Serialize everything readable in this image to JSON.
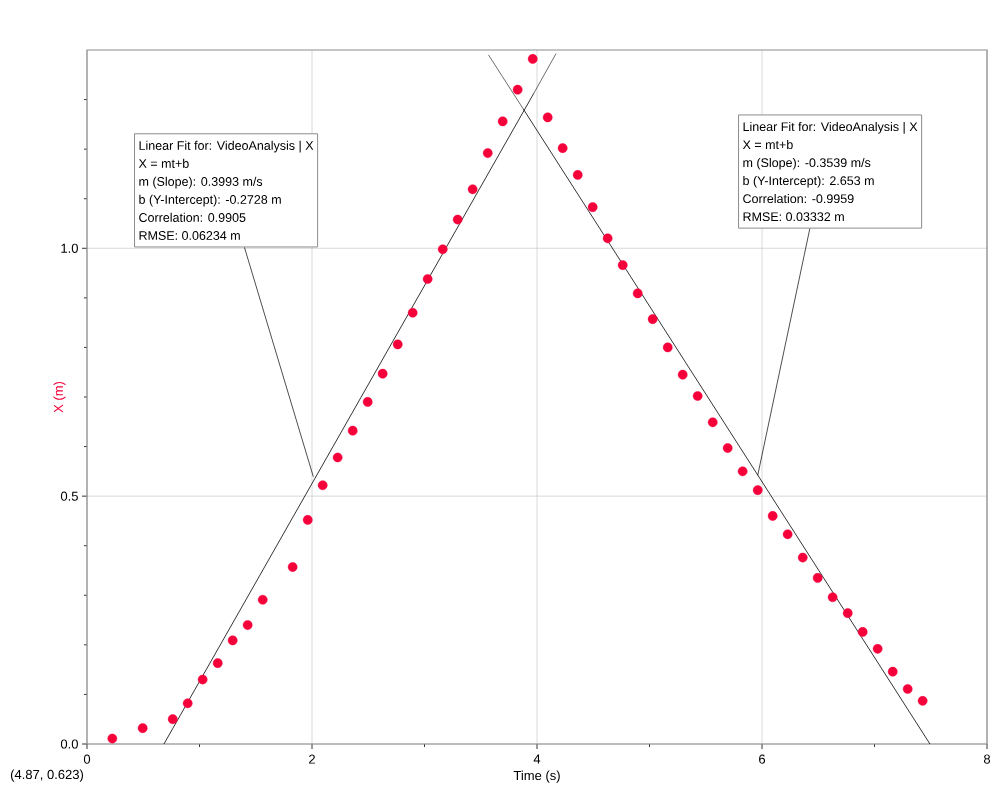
{
  "chart_data": {
    "type": "scatter",
    "xlabel": "Time (s)",
    "ylabel": "X (m)",
    "xlim": [
      0,
      8
    ],
    "ylim": [
      0,
      1.4
    ],
    "xticks": [
      0,
      {
        "value": 1,
        "label": null
      },
      2,
      {
        "value": 3,
        "label": null
      },
      4,
      {
        "value": 5,
        "label": null
      },
      6,
      {
        "value": 7,
        "label": null
      },
      8
    ],
    "yticks": [
      {
        "value": 0,
        "label": "0.0"
      },
      {
        "value": 0.1,
        "label": null
      },
      {
        "value": 0.2,
        "label": null
      },
      {
        "value": 0.3,
        "label": null
      },
      {
        "value": 0.4,
        "label": null
      },
      0.5,
      {
        "value": 0.6,
        "label": null
      },
      {
        "value": 0.7,
        "label": null
      },
      {
        "value": 0.8,
        "label": null
      },
      {
        "value": 0.9,
        "label": null
      },
      {
        "value": 1,
        "label": "1.0"
      },
      {
        "value": 1.1,
        "label": null
      },
      {
        "value": 1.2,
        "label": null
      },
      {
        "value": 1.3,
        "label": null
      }
    ],
    "grid": true,
    "series": [
      {
        "color": "#f5003a",
        "marker": "circle",
        "x": [
          0.225,
          0.495,
          0.762,
          0.895,
          1.028,
          1.162,
          1.295,
          1.428,
          1.562,
          1.828,
          1.962,
          2.095,
          2.228,
          2.362,
          2.495,
          2.628,
          2.762,
          2.895,
          3.028,
          3.162,
          3.295,
          3.428,
          3.562,
          3.695,
          3.828,
          3.962,
          4.095,
          4.228,
          4.362,
          4.495,
          4.628,
          4.762,
          4.895,
          5.028,
          5.162,
          5.295,
          5.428,
          5.562,
          5.695,
          5.828,
          5.962,
          6.095,
          6.228,
          6.362,
          6.495,
          6.628,
          6.762,
          6.895,
          7.028,
          7.162,
          7.295,
          7.428
        ],
        "values": [
          0.011,
          0.032,
          0.05,
          0.082,
          0.13,
          0.163,
          0.209,
          0.24,
          0.291,
          0.357,
          0.452,
          0.522,
          0.578,
          0.632,
          0.69,
          0.747,
          0.806,
          0.87,
          0.938,
          0.998,
          1.058,
          1.119,
          1.192,
          1.256,
          1.32,
          1.382,
          1.264,
          1.202,
          1.148,
          1.083,
          1.02,
          0.966,
          0.909,
          0.857,
          0.8,
          0.745,
          0.702,
          0.649,
          0.597,
          0.55,
          0.512,
          0.46,
          0.423,
          0.376,
          0.335,
          0.296,
          0.264,
          0.226,
          0.192,
          0.146,
          0.111,
          0.087
        ]
      },
      {
        "type": "line",
        "color": "#000000",
        "line_style": "solid",
        "marker": "none",
        "x": [
          0.684,
          3.97
        ],
        "values": [
          0,
          1.312
        ]
      },
      {
        "type": "line",
        "color": "#000000",
        "line_style": "dotted",
        "marker": "none",
        "x": [
          3.97,
          4.17
        ],
        "values": [
          1.312,
          1.393
        ]
      },
      {
        "type": "line",
        "color": "#000000",
        "line_style": "dotted",
        "marker": "none",
        "x": [
          3.569,
          3.878
        ],
        "values": [
          1.39,
          1.281
        ]
      },
      {
        "type": "line",
        "color": "#000000",
        "line_style": "solid",
        "marker": "none",
        "x": [
          3.878,
          7.493
        ],
        "values": [
          1.281,
          0
        ]
      }
    ],
    "annotations": [
      "Linear Fit for: VideoAnalysis | X",
      "X = mt+b",
      "m (Slope): 0.3993 m/s",
      "b (Y-Intercept): -0.2728 m",
      "Correlation: 0.9905",
      {
        "text": "RMSE: 0.06234 m",
        "x": 2.012,
        "y": 0.539
      },
      "Linear Fit for: VideoAnalysis | X",
      "X = mt+b",
      "m (Slope): -0.3539 m/s",
      "b (Y-Intercept): 2.653 m",
      "Correlation: -0.9959",
      {
        "text": "RMSE: 0.03332 m",
        "x": 5.962,
        "y": 0.542
      },
      "(4.87, 0.623)"
    ]
  }
}
